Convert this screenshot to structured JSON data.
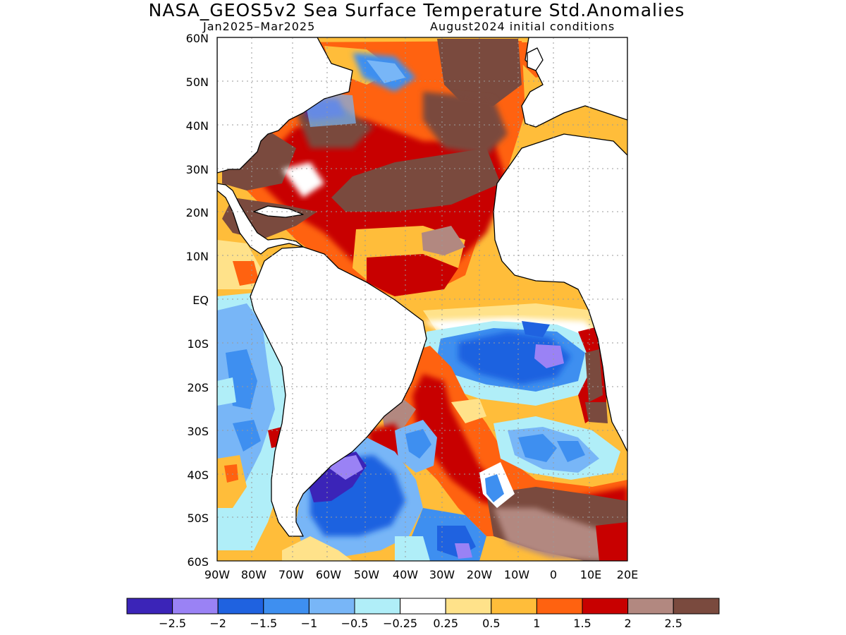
{
  "title": "NASA_GEOS5v2 Sea Surface Temperature Std.Anomalies",
  "subtitle_left": "Jan2025–Mar2025",
  "subtitle_right": "August2024 initial conditions",
  "map": {
    "lat_labels": [
      "60N",
      "50N",
      "40N",
      "30N",
      "20N",
      "10N",
      "EQ",
      "10S",
      "20S",
      "30S",
      "40S",
      "50S",
      "60S"
    ],
    "lon_labels": [
      "90W",
      "80W",
      "70W",
      "60W",
      "50W",
      "40W",
      "30W",
      "20W",
      "10W",
      "0",
      "10E",
      "20E"
    ]
  },
  "colorbar": {
    "colors": [
      "#3b24b8",
      "#9a82f5",
      "#1f62e0",
      "#3e8ff0",
      "#78b6f7",
      "#b0eef8",
      "#ffffff",
      "#ffe28a",
      "#ffbd3a",
      "#ff6210",
      "#c80000",
      "#b28880",
      "#7a4a3e"
    ],
    "labels": [
      "−2.5",
      "−2",
      "−1.5",
      "−1",
      "−0.5",
      "−0.25",
      "0.25",
      "0.5",
      "1",
      "1.5",
      "2",
      "2.5"
    ]
  }
}
